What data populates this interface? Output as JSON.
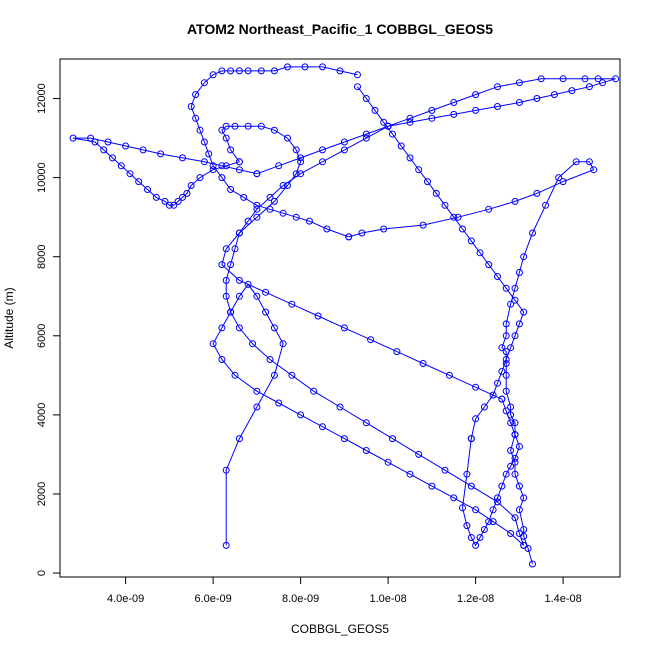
{
  "chart_data": {
    "type": "scatter",
    "title": "ATOM2 Northeast_Pacific_1 COBBGL_GEOS5",
    "xlabel": "COBBGL_GEOS5",
    "ylabel": "Altitude (m)",
    "xlim": [
      2.5e-09,
      1.53e-08
    ],
    "ylim": [
      -100,
      13000
    ],
    "x_ticks": [
      4e-09,
      6e-09,
      8e-09,
      1e-08,
      1.2e-08,
      1.4e-08
    ],
    "x_tick_labels": [
      "4.0e-09",
      "6.0e-09",
      "8.0e-09",
      "1.0e-08",
      "1.2e-08",
      "1.4e-08"
    ],
    "y_ticks": [
      0,
      2000,
      4000,
      6000,
      8000,
      10000,
      12000
    ],
    "y_tick_labels": [
      "0",
      "2000",
      "4000",
      "6000",
      "8000",
      "10000",
      "12000"
    ],
    "color": "#0000ff",
    "series": [
      {
        "x": [
          1.33e-08,
          1.32e-08,
          1.31e-08,
          1.31e-08,
          1.3e-08,
          1.31e-08,
          1.3e-08,
          1.29e-08,
          1.29e-08,
          1.28e-08,
          1.29e-08,
          1.29e-08,
          1.28e-08,
          1.28e-08,
          1.27e-08,
          1.27e-08,
          1.27e-08,
          1.27e-08,
          1.26e-08,
          1.27e-08,
          1.27e-08,
          1.28e-08,
          1.29e-08,
          1.3e-08,
          1.31e-08,
          1.33e-08,
          1.36e-08,
          1.39e-08,
          1.43e-08,
          1.46e-08,
          1.47e-08,
          1.4e-08,
          1.34e-08,
          1.29e-08,
          1.23e-08,
          1.16e-08,
          1.08e-08,
          9.9e-09,
          9.4e-09,
          9.1e-09
        ],
        "y": [
          230,
          620,
          930,
          1100,
          1600,
          1900,
          2200,
          2500,
          2800,
          3100,
          3500,
          3800,
          4000,
          4200,
          4600,
          5000,
          5300,
          5600,
          5700,
          6000,
          6300,
          6800,
          7200,
          7600,
          8000,
          8600,
          9300,
          10000,
          10400,
          10400,
          10200,
          9900,
          9600,
          9400,
          9200,
          9000,
          8800,
          8700,
          8600,
          8500
        ]
      },
      {
        "x": [
          9.1e-09,
          8.6e-09,
          8.2e-09,
          7.9e-09,
          7.6e-09,
          7.3e-09,
          7e-09,
          6.7e-09,
          6.4e-09,
          6.2e-09,
          6e-09,
          5.9e-09,
          5.8e-09,
          5.7e-09,
          5.6e-09,
          5.5e-09,
          5.6e-09,
          5.8e-09,
          6e-09,
          6.2e-09,
          6.4e-09,
          6.6e-09,
          6.8e-09,
          7.1e-09,
          7.4e-09,
          7.7e-09,
          8.1e-09,
          8.5e-09,
          8.9e-09,
          9.3e-09
        ],
        "y": [
          8500,
          8700,
          8900,
          9000,
          9100,
          9200,
          9300,
          9500,
          9700,
          10000,
          10300,
          10600,
          10900,
          11200,
          11500,
          11800,
          12100,
          12400,
          12600,
          12700,
          12700,
          12700,
          12700,
          12700,
          12700,
          12800,
          12800,
          12800,
          12700,
          12600
        ]
      },
      {
        "x": [
          9.3e-09,
          9.5e-09,
          9.7e-09,
          9.9e-09,
          1.01e-08,
          1.03e-08,
          1.05e-08,
          1.07e-08,
          1.09e-08,
          1.11e-08,
          1.13e-08,
          1.15e-08,
          1.17e-08,
          1.19e-08,
          1.21e-08,
          1.23e-08,
          1.25e-08,
          1.27e-08,
          1.29e-08,
          1.31e-08,
          1.3e-08,
          1.29e-08,
          1.28e-08,
          1.27e-08,
          1.26e-08,
          1.25e-08,
          1.24e-08,
          1.22e-08,
          1.2e-08,
          1.19e-08
        ],
        "y": [
          12300,
          12000,
          11700,
          11400,
          11100,
          10800,
          10500,
          10200,
          9900,
          9600,
          9300,
          9000,
          8700,
          8400,
          8100,
          7800,
          7500,
          7200,
          6900,
          6600,
          6300,
          6000,
          5700,
          5400,
          5100,
          4800,
          4500,
          4200,
          3900,
          3400
        ]
      },
      {
        "x": [
          1.19e-08,
          1.18e-08,
          1.17e-08,
          1.18e-08,
          1.19e-08,
          1.2e-08,
          1.21e-08,
          1.22e-08,
          1.23e-08,
          1.24e-08,
          1.25e-08,
          1.26e-08,
          1.27e-08,
          1.28e-08,
          1.29e-08,
          1.3e-08,
          1.29e-08,
          1.28e-08,
          1.27e-08,
          1.26e-08
        ],
        "y": [
          3400,
          2500,
          1650,
          1200,
          900,
          700,
          900,
          1100,
          1300,
          1600,
          1900,
          2200,
          2500,
          2700,
          2900,
          3200,
          3500,
          3800,
          4100,
          4400
        ]
      },
      {
        "x": [
          1.26e-08,
          1.2e-08,
          1.14e-08,
          1.08e-08,
          1.02e-08,
          9.6e-09,
          9e-09,
          8.4e-09,
          7.8e-09,
          7.2e-09,
          6.6e-09,
          6.2e-09,
          6.3e-09,
          6.6e-09,
          7e-09,
          7.4e-09,
          7.7e-09,
          7.9e-09,
          8e-09,
          7.9e-09,
          7.7e-09,
          7.4e-09,
          7.1e-09,
          6.8e-09,
          6.5e-09,
          6.3e-09,
          6.2e-09,
          6.3e-09,
          6.4e-09,
          6.6e-09
        ],
        "y": [
          4400,
          4700,
          5000,
          5300,
          5600,
          5900,
          6200,
          6500,
          6800,
          7100,
          7400,
          7800,
          8200,
          8600,
          9000,
          9400,
          9800,
          10100,
          10400,
          10700,
          11000,
          11200,
          11300,
          11300,
          11300,
          11300,
          11200,
          11000,
          10700,
          10400
        ]
      },
      {
        "x": [
          6.6e-09,
          6.3e-09,
          6e-09,
          5.7e-09,
          5.5e-09,
          5.4e-09,
          5.3e-09,
          5.2e-09,
          5.1e-09,
          5e-09,
          4.9e-09,
          4.7e-09,
          4.5e-09,
          4.3e-09,
          4.1e-09,
          3.9e-09,
          3.7e-09,
          3.5e-09,
          3.3e-09,
          2.8e-09,
          3.2e-09,
          3.6e-09,
          4e-09,
          4.4e-09,
          4.8e-09,
          5.3e-09,
          5.8e-09,
          6.2e-09,
          6.6e-09,
          7e-09
        ],
        "y": [
          10400,
          10300,
          10200,
          10000,
          9800,
          9600,
          9500,
          9400,
          9300,
          9300,
          9400,
          9500,
          9700,
          9900,
          10100,
          10300,
          10500,
          10700,
          10900,
          11000,
          11000,
          10900,
          10800,
          10700,
          10600,
          10500,
          10400,
          10300,
          10200,
          10100
        ]
      },
      {
        "x": [
          7e-09,
          7.5e-09,
          8e-09,
          8.5e-09,
          9e-09,
          9.5e-09,
          1e-08,
          1.05e-08,
          1.1e-08,
          1.15e-08,
          1.2e-08,
          1.25e-08,
          1.3e-08,
          1.35e-08,
          1.4e-08,
          1.45e-08,
          1.48e-08,
          1.52e-08,
          1.49e-08,
          1.46e-08,
          1.42e-08,
          1.38e-08,
          1.34e-08,
          1.3e-08,
          1.25e-08,
          1.2e-08,
          1.15e-08,
          1.1e-08,
          1.05e-08,
          1e-08
        ],
        "y": [
          10100,
          10300,
          10500,
          10700,
          10900,
          11100,
          11300,
          11500,
          11700,
          11900,
          12100,
          12300,
          12400,
          12500,
          12500,
          12500,
          12500,
          12500,
          12400,
          12300,
          12200,
          12100,
          12000,
          11900,
          11800,
          11700,
          11600,
          11500,
          11400,
          11300
        ]
      },
      {
        "x": [
          1e-08,
          9.5e-09,
          9e-09,
          8.5e-09,
          8e-09,
          7.6e-09,
          7.3e-09,
          7e-09,
          6.8e-09,
          6.6e-09,
          6.5e-09,
          6.4e-09,
          6.3e-09,
          6.3e-09,
          6.4e-09,
          6.6e-09,
          6.9e-09,
          7.3e-09,
          7.8e-09,
          8.3e-09,
          8.9e-09,
          9.5e-09,
          1.01e-08,
          1.07e-08,
          1.13e-08,
          1.19e-08,
          1.25e-08,
          1.29e-08,
          1.3e-08,
          1.31e-08
        ],
        "y": [
          11300,
          11000,
          10700,
          10400,
          10100,
          9800,
          9500,
          9200,
          8900,
          8600,
          8200,
          7800,
          7400,
          7000,
          6600,
          6200,
          5800,
          5400,
          5000,
          4600,
          4200,
          3800,
          3400,
          3000,
          2600,
          2200,
          1800,
          1400,
          1000,
          700
        ]
      },
      {
        "x": [
          1.31e-08,
          1.28e-08,
          1.24e-08,
          1.2e-08,
          1.15e-08,
          1.1e-08,
          1.05e-08,
          1e-08,
          9.5e-09,
          9e-09,
          8.5e-09,
          8e-09,
          7.5e-09,
          7e-09,
          6.5e-09,
          6.2e-09,
          6e-09,
          6.2e-09,
          6.4e-09,
          6.6e-09,
          6.8e-09,
          7e-09,
          7.2e-09,
          7.4e-09,
          7.6e-09,
          7.4e-09,
          7e-09,
          6.6e-09,
          6.3e-09,
          6.3e-09
        ],
        "y": [
          700,
          1000,
          1300,
          1600,
          1900,
          2200,
          2500,
          2800,
          3100,
          3400,
          3700,
          4000,
          4300,
          4600,
          5000,
          5400,
          5800,
          6200,
          6600,
          7000,
          7300,
          7000,
          6600,
          6200,
          5800,
          5000,
          4200,
          3400,
          2600,
          700
        ]
      }
    ]
  }
}
